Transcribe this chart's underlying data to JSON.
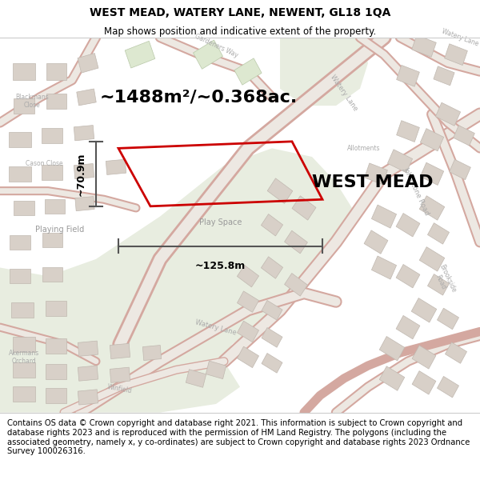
{
  "title": "WEST MEAD, WATERY LANE, NEWENT, GL18 1QA",
  "subtitle": "Map shows position and indicative extent of the property.",
  "area_label": "~1488m²/~0.368ac.",
  "property_name": "WEST MEAD",
  "width_label": "~125.8m",
  "height_label": "~70.9m",
  "playing_field_label": "Playing Field",
  "play_space_label": "Play Space",
  "footer_text": "Contains OS data © Crown copyright and database right 2021. This information is subject to Crown copyright and database rights 2023 and is reproduced with the permission of HM Land Registry. The polygons (including the associated geometry, namely x, y co-ordinates) are subject to Crown copyright and database rights 2023 Ordnance Survey 100026316.",
  "map_bg": "#f2ede8",
  "green_color": "#e8ede0",
  "road_fill": "#f5f0ea",
  "road_edge": "#d4a8a0",
  "bld_fill": "#d8d0c8",
  "bld_edge": "#c0b8b0",
  "plot_color": "#cc0000",
  "dim_color": "#555555",
  "label_gray": "#999999",
  "title_fontsize": 10,
  "subtitle_fontsize": 8.5,
  "area_fontsize": 16,
  "prop_fontsize": 16,
  "dim_fontsize": 9,
  "small_fontsize": 7,
  "footer_fontsize": 7.2
}
